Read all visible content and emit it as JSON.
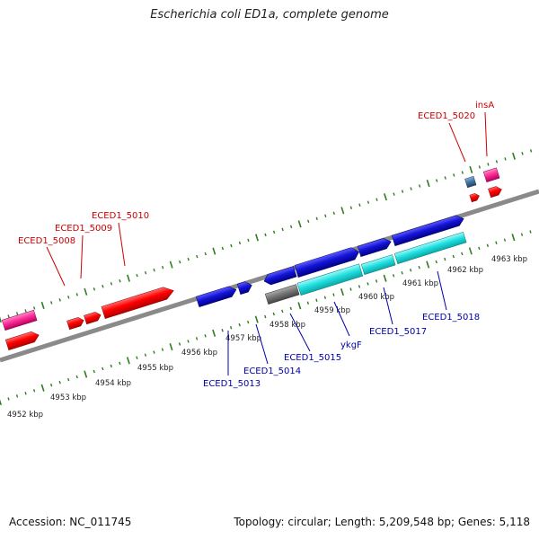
{
  "title": "Escherichia coli ED1a, complete genome",
  "footer": {
    "accession": "Accession: NC_011745",
    "summary": "Topology: circular; Length: 5,209,548 bp; Genes: 5,118"
  },
  "colors": {
    "backbone": "#888888",
    "tick": "#2e7d1e",
    "label_top": "#cc0000",
    "label_bottom": "#0000aa",
    "red": "#ff0000",
    "pink": "#ff3399",
    "blue": "#1a1acc",
    "cyan": "#22dddd",
    "gray": "#777777",
    "steel": "#4477aa"
  },
  "kbp_labels": [
    "4952 kbp",
    "4953 kbp",
    "4954 kbp",
    "4955 kbp",
    "4956 kbp",
    "4957 kbp",
    "4958 kbp",
    "4959 kbp",
    "4960 kbp",
    "4961 kbp",
    "4962 kbp",
    "4963 kbp"
  ],
  "gene_labels_top": [
    "ECED1_5008",
    "ECED1_5009",
    "ECED1_5010",
    "ECED1_5020",
    "insA"
  ],
  "gene_labels_bottom": [
    "ECED1_5013",
    "ECED1_5014",
    "ECED1_5015",
    "ykgF",
    "ECED1_5017",
    "ECED1_5018"
  ]
}
